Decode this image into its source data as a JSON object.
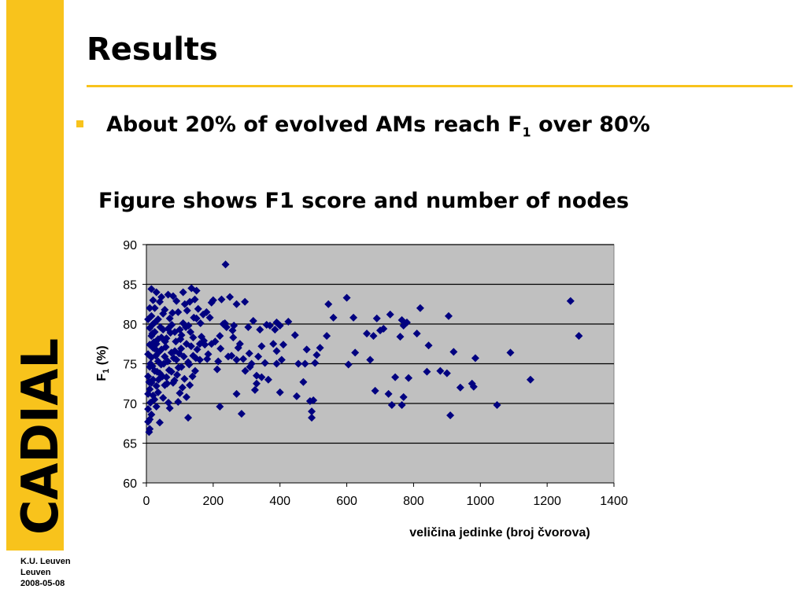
{
  "slide": {
    "title": "Results",
    "bullet": {
      "text": "About 20% of evolved AMs reach F",
      "sub": "1",
      "tail": " over 80%"
    },
    "caption": "Figure shows F1 score and number of nodes"
  },
  "sidebar": {
    "logo_text": "CADIAL",
    "footer": [
      "K.U. Leuven",
      "Leuven",
      "2008-05-08"
    ]
  },
  "colors": {
    "accent": "#f8c31c",
    "plot_bg": "#c0c0c0",
    "marker": "#000080"
  },
  "chart_data": {
    "type": "scatter",
    "title": "",
    "xlabel": "veličina jedinke (broj čvorova)",
    "ylabel": "F1 (%)",
    "xlim": [
      0,
      1400
    ],
    "ylim": [
      60,
      90
    ],
    "xticks": [
      0,
      200,
      400,
      600,
      800,
      1000,
      1200,
      1400
    ],
    "yticks": [
      60,
      65,
      70,
      75,
      80,
      85,
      90
    ],
    "grid": "horizontal",
    "marker": "diamond",
    "points": [
      [
        237,
        87.5
      ],
      [
        600,
        83.3
      ],
      [
        1270,
        82.9
      ],
      [
        1295,
        78.5
      ],
      [
        1090,
        76.4
      ],
      [
        1150,
        73.0
      ],
      [
        1050,
        69.8
      ],
      [
        905,
        81.0
      ],
      [
        910,
        68.5
      ],
      [
        920,
        76.5
      ],
      [
        985,
        75.7
      ],
      [
        975,
        72.5
      ],
      [
        980,
        72.1
      ],
      [
        940,
        72.0
      ],
      [
        880,
        74.1
      ],
      [
        820,
        82.0
      ],
      [
        845,
        77.3
      ],
      [
        810,
        78.8
      ],
      [
        765,
        80.5
      ],
      [
        770,
        79.8
      ],
      [
        780,
        80.2
      ],
      [
        760,
        78.4
      ],
      [
        770,
        70.8
      ],
      [
        765,
        69.8
      ],
      [
        745,
        73.3
      ],
      [
        735,
        69.8
      ],
      [
        785,
        73.2
      ],
      [
        730,
        81.2
      ],
      [
        700,
        79.2
      ],
      [
        710,
        79.4
      ],
      [
        690,
        80.7
      ],
      [
        680,
        78.5
      ],
      [
        660,
        78.8
      ],
      [
        670,
        75.5
      ],
      [
        685,
        71.6
      ],
      [
        725,
        71.2
      ],
      [
        840,
        74.0
      ],
      [
        900,
        73.8
      ],
      [
        620,
        80.8
      ],
      [
        625,
        76.4
      ],
      [
        605,
        74.9
      ],
      [
        560,
        80.8
      ],
      [
        545,
        82.5
      ],
      [
        540,
        78.5
      ],
      [
        505,
        75.1
      ],
      [
        510,
        76.1
      ],
      [
        500,
        70.4
      ],
      [
        495,
        69.0
      ],
      [
        495,
        68.2
      ],
      [
        490,
        70.3
      ],
      [
        475,
        75.0
      ],
      [
        480,
        76.8
      ],
      [
        455,
        75.0
      ],
      [
        445,
        78.6
      ],
      [
        450,
        70.9
      ],
      [
        400,
        71.4
      ],
      [
        410,
        77.4
      ],
      [
        400,
        79.8
      ],
      [
        390,
        80.2
      ],
      [
        385,
        79.3
      ],
      [
        395,
        80.0
      ],
      [
        390,
        76.6
      ],
      [
        390,
        75.0
      ],
      [
        370,
        79.8
      ],
      [
        360,
        79.9
      ],
      [
        355,
        75.1
      ],
      [
        345,
        77.2
      ],
      [
        345,
        73.3
      ],
      [
        335,
        75.9
      ],
      [
        330,
        72.5
      ],
      [
        325,
        71.7
      ],
      [
        330,
        73.5
      ],
      [
        320,
        80.4
      ],
      [
        310,
        74.6
      ],
      [
        315,
        75.0
      ],
      [
        305,
        79.6
      ],
      [
        295,
        82.8
      ],
      [
        290,
        75.6
      ],
      [
        285,
        68.7
      ],
      [
        270,
        82.5
      ],
      [
        275,
        77.0
      ],
      [
        270,
        75.5
      ],
      [
        270,
        71.2
      ],
      [
        260,
        78.3
      ],
      [
        258,
        79.2
      ],
      [
        255,
        76.0
      ],
      [
        250,
        83.4
      ],
      [
        240,
        79.6
      ],
      [
        235,
        80.1
      ],
      [
        225,
        83.1
      ],
      [
        220,
        78.5
      ],
      [
        215,
        75.3
      ],
      [
        220,
        69.6
      ],
      [
        200,
        83.0
      ],
      [
        195,
        82.7
      ],
      [
        195,
        77.5
      ],
      [
        190,
        80.8
      ],
      [
        185,
        76.2
      ],
      [
        180,
        81.5
      ],
      [
        175,
        77.4
      ],
      [
        170,
        81.2
      ],
      [
        165,
        78.4
      ],
      [
        160,
        77.5
      ],
      [
        160,
        75.5
      ],
      [
        155,
        81.9
      ],
      [
        150,
        80.7
      ],
      [
        150,
        84.2
      ],
      [
        145,
        83.1
      ],
      [
        140,
        78.3
      ],
      [
        140,
        76.0
      ],
      [
        135,
        84.5
      ],
      [
        130,
        82.8
      ],
      [
        130,
        72.3
      ],
      [
        125,
        75.2
      ],
      [
        120,
        77.5
      ],
      [
        120,
        70.8
      ],
      [
        125,
        68.2
      ],
      [
        115,
        82.5
      ],
      [
        110,
        84.0
      ],
      [
        110,
        80.1
      ],
      [
        105,
        74.6
      ],
      [
        100,
        79.3
      ],
      [
        100,
        71.3
      ],
      [
        95,
        70.2
      ],
      [
        90,
        75.5
      ],
      [
        90,
        82.9
      ],
      [
        85,
        79.0
      ],
      [
        80,
        83.5
      ],
      [
        80,
        72.6
      ],
      [
        75,
        76.4
      ],
      [
        70,
        80.7
      ],
      [
        70,
        69.4
      ],
      [
        65,
        83.7
      ],
      [
        60,
        78.2
      ],
      [
        60,
        73.3
      ],
      [
        55,
        81.8
      ],
      [
        55,
        75.9
      ],
      [
        50,
        79.3
      ],
      [
        50,
        70.7
      ],
      [
        45,
        83.4
      ],
      [
        45,
        76.8
      ],
      [
        40,
        82.8
      ],
      [
        40,
        73.8
      ],
      [
        40,
        67.6
      ],
      [
        35,
        80.6
      ],
      [
        35,
        78.1
      ],
      [
        35,
        75.3
      ],
      [
        30,
        84.0
      ],
      [
        30,
        72.2
      ],
      [
        30,
        69.6
      ],
      [
        25,
        82.0
      ],
      [
        25,
        79.0
      ],
      [
        25,
        76.9
      ],
      [
        25,
        74.1
      ],
      [
        20,
        83.0
      ],
      [
        20,
        80.0
      ],
      [
        20,
        77.0
      ],
      [
        20,
        73.0
      ],
      [
        20,
        71.0
      ],
      [
        15,
        84.4
      ],
      [
        15,
        81.0
      ],
      [
        15,
        78.5
      ],
      [
        15,
        75.8
      ],
      [
        15,
        72.6
      ],
      [
        15,
        68.6
      ],
      [
        10,
        82.0
      ],
      [
        10,
        79.5
      ],
      [
        10,
        77.4
      ],
      [
        10,
        74.6
      ],
      [
        10,
        71.8
      ],
      [
        10,
        68.0
      ],
      [
        10,
        66.8
      ],
      [
        5,
        80.6
      ],
      [
        5,
        76.2
      ],
      [
        5,
        73.4
      ],
      [
        5,
        71.2
      ],
      [
        5,
        69.3
      ],
      [
        5,
        67.7
      ],
      [
        8,
        66.4
      ],
      [
        12,
        70.1
      ],
      [
        18,
        74.7
      ],
      [
        22,
        77.7
      ],
      [
        28,
        80.3
      ],
      [
        32,
        74.0
      ],
      [
        38,
        76.5
      ],
      [
        42,
        79.6
      ],
      [
        48,
        73.4
      ],
      [
        52,
        75.0
      ],
      [
        58,
        77.1
      ],
      [
        62,
        72.5
      ],
      [
        68,
        74.2
      ],
      [
        72,
        78.9
      ],
      [
        78,
        81.4
      ],
      [
        82,
        75.7
      ],
      [
        88,
        77.8
      ],
      [
        92,
        73.6
      ],
      [
        98,
        76.3
      ],
      [
        102,
        78.1
      ],
      [
        108,
        72.0
      ],
      [
        112,
        75.9
      ],
      [
        118,
        79.6
      ],
      [
        122,
        81.7
      ],
      [
        128,
        74.9
      ],
      [
        132,
        79.0
      ],
      [
        138,
        73.4
      ],
      [
        142,
        80.8
      ],
      [
        148,
        75.7
      ],
      [
        105,
        78.6
      ],
      [
        95,
        81.5
      ],
      [
        85,
        76.6
      ],
      [
        75,
        74.0
      ],
      [
        65,
        79.4
      ],
      [
        55,
        72.3
      ],
      [
        45,
        78.3
      ],
      [
        35,
        71.4
      ],
      [
        28,
        76.0
      ],
      [
        18,
        78.8
      ],
      [
        12,
        75.0
      ],
      [
        8,
        72.7
      ],
      [
        24,
        70.5
      ],
      [
        30,
        77.5
      ],
      [
        36,
        73.0
      ],
      [
        44,
        74.9
      ],
      [
        50,
        81.3
      ],
      [
        56,
        77.8
      ],
      [
        64,
        75.3
      ],
      [
        66,
        70.1
      ],
      [
        76,
        79.9
      ],
      [
        84,
        72.9
      ],
      [
        96,
        74.5
      ],
      [
        104,
        76.9
      ],
      [
        114,
        73.1
      ],
      [
        126,
        79.8
      ],
      [
        134,
        77.2
      ],
      [
        146,
        74.1
      ],
      [
        152,
        76.8
      ],
      [
        162,
        80.1
      ],
      [
        172,
        77.9
      ],
      [
        182,
        75.6
      ],
      [
        206,
        77.8
      ],
      [
        212,
        74.3
      ],
      [
        222,
        76.9
      ],
      [
        230,
        80.0
      ],
      [
        245,
        75.9
      ],
      [
        262,
        79.8
      ],
      [
        280,
        77.5
      ],
      [
        296,
        74.1
      ],
      [
        308,
        76.3
      ],
      [
        340,
        79.3
      ],
      [
        365,
        73.0
      ],
      [
        380,
        77.5
      ],
      [
        405,
        75.5
      ],
      [
        425,
        80.3
      ],
      [
        470,
        72.7
      ],
      [
        520,
        77.0
      ]
    ]
  }
}
